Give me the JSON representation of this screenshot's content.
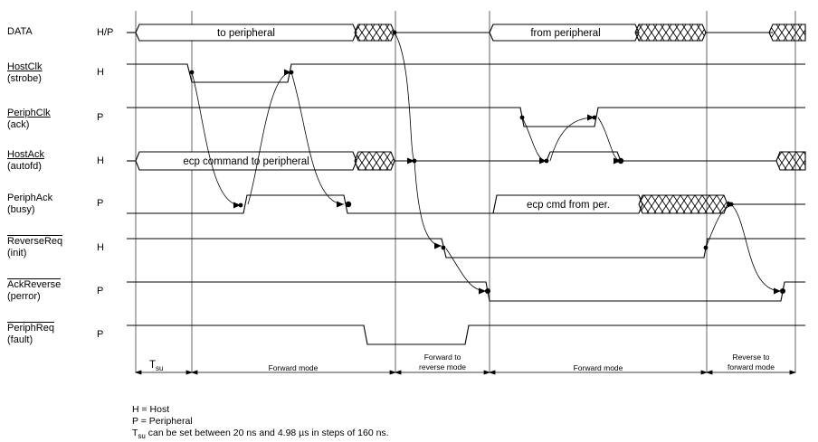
{
  "signals": [
    {
      "name": "DATA",
      "sub": "",
      "dir": "H/P",
      "bar": "none"
    },
    {
      "name": "HostClk",
      "sub": "(strobe)",
      "dir": "H",
      "bar": "under"
    },
    {
      "name": "PeriphClk",
      "sub": "(ack)",
      "dir": "P",
      "bar": "under"
    },
    {
      "name": "HostAck",
      "sub": "(autofd)",
      "dir": "H",
      "bar": "under"
    },
    {
      "name": "PeriphAck",
      "sub": "(busy)",
      "dir": "P",
      "bar": "none"
    },
    {
      "name": "ReverseReq",
      "sub": "(init)",
      "dir": "H",
      "bar": "over"
    },
    {
      "name": "AckReverse",
      "sub": "(perror)",
      "dir": "P",
      "bar": "over"
    },
    {
      "name": "PeriphReq",
      "sub": "(fault)",
      "dir": "P",
      "bar": "over"
    }
  ],
  "bus_labels": {
    "data_to_peripheral": "to peripheral",
    "data_from_peripheral": "from peripheral",
    "hostack_cmd": "ecp command to peripheral",
    "periphack_cmd": "ecp cmd from per."
  },
  "phases": {
    "tsu_main": "T",
    "tsu_sub": "su",
    "forward_mode_1": "Forward mode",
    "forward_to_reverse_1": "Forward to",
    "forward_to_reverse_2": "reverse mode",
    "forward_mode_2": "Forward mode",
    "reverse_to_forward_1": "Reverse to",
    "reverse_to_forward_2": "forward mode"
  },
  "legend": {
    "host": "H = Host",
    "peripheral": "P = Peripheral",
    "tsu_main": "T",
    "tsu_sub": "su",
    "tsu_note": " can be set between 20 ns and 4.98 µs in steps of 160 ns."
  }
}
